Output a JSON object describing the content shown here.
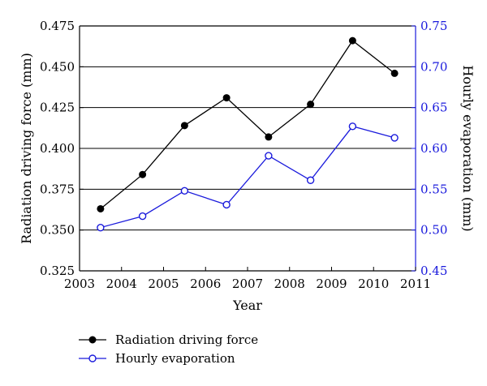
{
  "chart_data": {
    "type": "line",
    "xlabel": "Year",
    "ylabel_left": "Radiation driving force (mm)",
    "ylabel_right": "Hourly evaporation (mm)",
    "xlim": [
      2003,
      2011
    ],
    "ylim_left": [
      0.325,
      0.475
    ],
    "ylim_right": [
      0.45,
      0.75
    ],
    "x_ticks": [
      2003,
      2004,
      2005,
      2006,
      2007,
      2008,
      2009,
      2010,
      2011
    ],
    "y_ticks_left": [
      "0.325",
      "0.350",
      "0.375",
      "0.400",
      "0.425",
      "0.450",
      "0.475"
    ],
    "y_ticks_right": [
      "0.45",
      "0.50",
      "0.55",
      "0.60",
      "0.65",
      "0.70",
      "0.75"
    ],
    "grid": "horizontal",
    "legend_position": "bottom-left",
    "series": [
      {
        "name": "Radiation driving force",
        "axis": "left",
        "color": "#000000",
        "marker": "filled-circle",
        "x": [
          2003.5,
          2004.5,
          2005.5,
          2006.5,
          2007.5,
          2008.5,
          2009.5,
          2010.5
        ],
        "values": [
          0.363,
          0.384,
          0.414,
          0.431,
          0.407,
          0.427,
          0.466,
          0.446
        ]
      },
      {
        "name": "Hourly evaporation",
        "axis": "right",
        "color": "#1a1adc",
        "marker": "open-circle",
        "x": [
          2003.5,
          2004.5,
          2005.5,
          2006.5,
          2007.5,
          2008.5,
          2009.5,
          2010.5
        ],
        "values": [
          0.503,
          0.517,
          0.548,
          0.531,
          0.591,
          0.561,
          0.627,
          0.613
        ]
      }
    ]
  }
}
